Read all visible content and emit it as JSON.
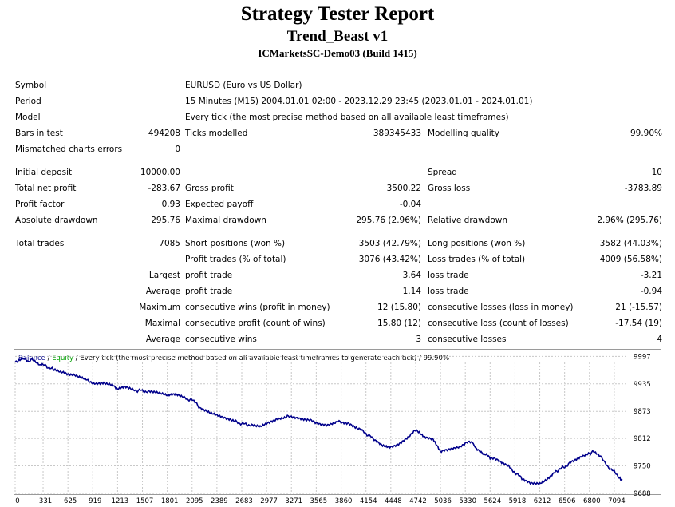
{
  "header": {
    "title": "Strategy Tester Report",
    "expert": "Trend_Beast v1",
    "server": "ICMarketsSC-Demo03 (Build 1415)"
  },
  "settings": {
    "symbol_label": "Symbol",
    "symbol_value": "EURUSD (Euro vs US Dollar)",
    "period_label": "Period",
    "period_value": "15 Minutes (M15) 2004.01.01 02:00 - 2023.12.29 23:45 (2023.01.01 - 2024.01.01)",
    "model_label": "Model",
    "model_value": "Every tick (the most precise method based on all available least timeframes)",
    "bars_label": "Bars in test",
    "bars_value": "494208",
    "ticks_label": "Ticks modelled",
    "ticks_value": "389345433",
    "quality_label": "Modelling quality",
    "quality_value": "99.90%",
    "mismatch_label": "Mismatched charts errors",
    "mismatch_value": "0"
  },
  "results": {
    "initial_deposit_label": "Initial deposit",
    "initial_deposit_value": "10000.00",
    "spread_label": "Spread",
    "spread_value": "10",
    "net_profit_label": "Total net profit",
    "net_profit_value": "-283.67",
    "gross_profit_label": "Gross profit",
    "gross_profit_value": "3500.22",
    "gross_loss_label": "Gross loss",
    "gross_loss_value": "-3783.89",
    "profit_factor_label": "Profit factor",
    "profit_factor_value": "0.93",
    "expected_payoff_label": "Expected payoff",
    "expected_payoff_value": "-0.04",
    "abs_dd_label": "Absolute drawdown",
    "abs_dd_value": "295.76",
    "max_dd_label": "Maximal drawdown",
    "max_dd_value": "295.76 (2.96%)",
    "rel_dd_label": "Relative drawdown",
    "rel_dd_value": "2.96% (295.76)",
    "total_trades_label": "Total trades",
    "total_trades_value": "7085",
    "short_label": "Short positions (won %)",
    "short_value": "3503 (42.79%)",
    "long_label": "Long positions (won %)",
    "long_value": "3582 (44.03%)",
    "profit_trades_label": "Profit trades (% of total)",
    "profit_trades_value": "3076 (43.42%)",
    "loss_trades_label": "Loss trades (% of total)",
    "loss_trades_value": "4009 (56.58%)",
    "largest_label": "Largest",
    "largest_profit_label": "profit trade",
    "largest_profit_value": "3.64",
    "largest_loss_label": "loss trade",
    "largest_loss_value": "-3.21",
    "average_label": "Average",
    "average_profit_label": "profit trade",
    "average_profit_value": "1.14",
    "average_loss_label": "loss trade",
    "average_loss_value": "-0.94",
    "maximum_label": "Maximum",
    "max_cons_wins_label": "consecutive wins (profit in money)",
    "max_cons_wins_value": "12 (15.80)",
    "max_cons_losses_label": "consecutive losses (loss in money)",
    "max_cons_losses_value": "21 (-15.57)",
    "maximal_label": "Maximal",
    "maximal_profit_label": "consecutive profit (count of wins)",
    "maximal_profit_value": "15.80 (12)",
    "maximal_loss_label": "consecutive loss (count of losses)",
    "maximal_loss_value": "-17.54 (19)",
    "average2_label": "Average",
    "avg_cons_wins_label": "consecutive wins",
    "avg_cons_wins_value": "3",
    "avg_cons_losses_label": "consecutive losses",
    "avg_cons_losses_value": "4"
  },
  "colors": {
    "balance": "#00008b",
    "equity": "#00a000",
    "grid": "#c8c8c8"
  },
  "chart_data": {
    "type": "line",
    "legend_balance": "Balance",
    "legend_sep1": " / ",
    "legend_equity": "Equity",
    "legend_rest": " / Every tick (the most precise method based on all available least timeframes to generate each tick) / 99.90%",
    "x_ticks": [
      0,
      331,
      625,
      919,
      1213,
      1507,
      1801,
      2095,
      2389,
      2683,
      2977,
      3271,
      3565,
      3860,
      4154,
      4448,
      4742,
      5036,
      5330,
      5624,
      5918,
      6212,
      6506,
      6800,
      7094
    ],
    "y_ticks": [
      9688,
      9750,
      9812,
      9873,
      9935,
      9997
    ],
    "xlim": [
      0,
      7246
    ],
    "ylim": [
      9688,
      10012
    ],
    "series": [
      {
        "name": "Balance",
        "x": [
          0,
          80,
          150,
          200,
          300,
          331,
          450,
          550,
          625,
          750,
          850,
          919,
          1050,
          1150,
          1213,
          1300,
          1400,
          1507,
          1600,
          1700,
          1801,
          1900,
          2000,
          2095,
          2150,
          2200,
          2300,
          2389,
          2500,
          2600,
          2683,
          2800,
          2900,
          2977,
          3100,
          3200,
          3271,
          3350,
          3450,
          3565,
          3700,
          3800,
          3860,
          3950,
          4050,
          4154,
          4250,
          4350,
          4448,
          4550,
          4650,
          4742,
          4850,
          4950,
          5036,
          5150,
          5250,
          5330,
          5400,
          5450,
          5550,
          5624,
          5750,
          5850,
          5918,
          6000,
          6100,
          6212,
          6300,
          6400,
          6506,
          6600,
          6700,
          6800,
          6850,
          6950,
          7000,
          7094,
          7150,
          7190
        ],
        "values": [
          9984,
          9994,
          9985,
          9990,
          9976,
          9978,
          9967,
          9960,
          9957,
          9950,
          9943,
          9938,
          9935,
          9931,
          9925,
          9927,
          9920,
          9920,
          9916,
          9913,
          9908,
          9910,
          9903,
          9898,
          9889,
          9878,
          9869,
          9863,
          9856,
          9850,
          9845,
          9842,
          9838,
          9847,
          9855,
          9859,
          9863,
          9858,
          9854,
          9848,
          9843,
          9849,
          9850,
          9847,
          9836,
          9823,
          9811,
          9798,
          9792,
          9802,
          9816,
          9829,
          9817,
          9812,
          9780,
          9790,
          9794,
          9800,
          9806,
          9792,
          9778,
          9768,
          9760,
          9750,
          9735,
          9722,
          9712,
          9712,
          9720,
          9738,
          9748,
          9760,
          9770,
          9778,
          9782,
          9768,
          9752,
          9736,
          9722,
          9718
        ]
      }
    ]
  }
}
